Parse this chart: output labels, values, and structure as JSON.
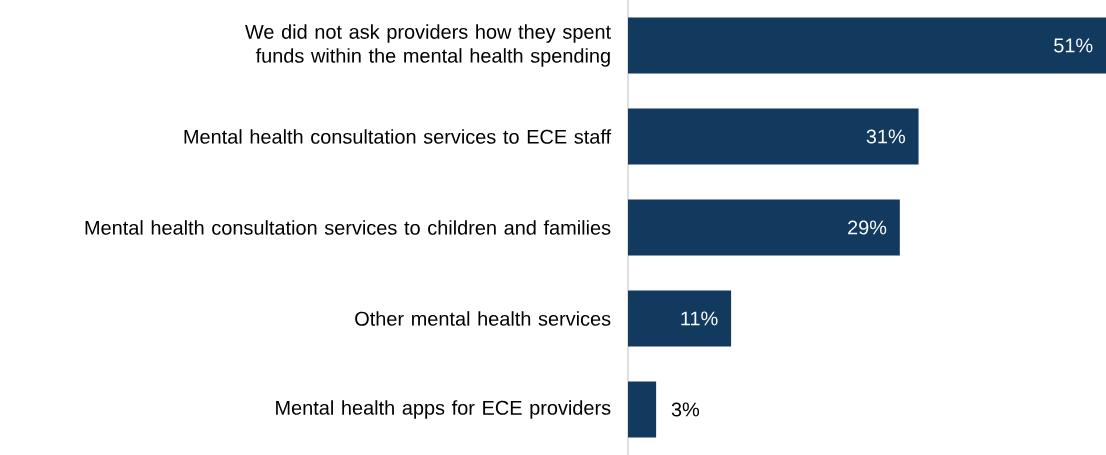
{
  "chart_data": {
    "type": "bar",
    "orientation": "horizontal",
    "categories": [
      "We did not ask providers how they spent funds within the mental health spending",
      "Mental health consultation services to ECE staff",
      "Mental health consultation services to children and families",
      "Other mental health services",
      "Mental health apps for ECE providers"
    ],
    "values": [
      51,
      31,
      29,
      11,
      3
    ],
    "value_labels": [
      "51%",
      "31%",
      "29%",
      "11%",
      "3%"
    ],
    "color": "#12395e"
  }
}
